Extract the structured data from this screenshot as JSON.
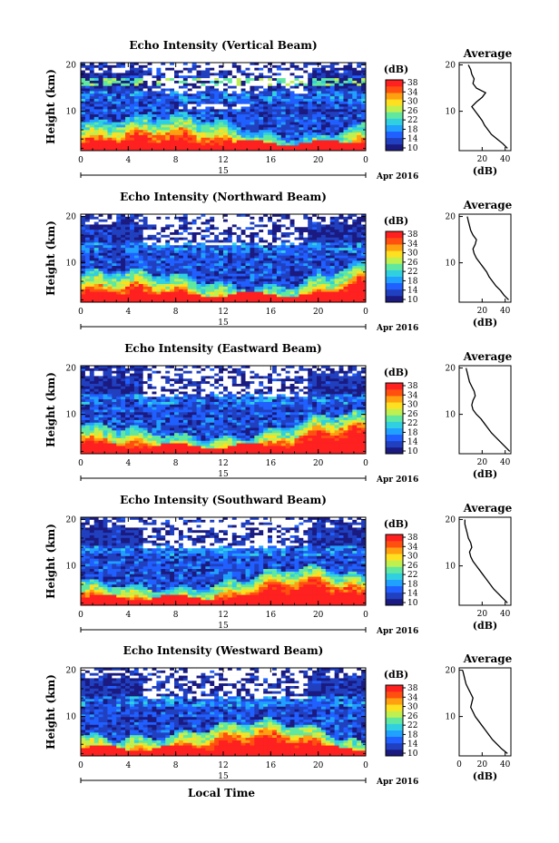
{
  "figure": {
    "xlabel": "Local Time",
    "date_label": "Apr 2016",
    "day_label": "15",
    "colorbar_label": "(dB)",
    "average_title": "Average",
    "average_xlabel": "(dB)",
    "ylabel": "Height (km)"
  },
  "colorbar": {
    "ticks": [
      "10",
      "14",
      "18",
      "22",
      "26",
      "30",
      "34",
      "38"
    ],
    "range": [
      10,
      40
    ],
    "colors": [
      "#1a1a80",
      "#2040c0",
      "#2060ff",
      "#20a0ff",
      "#30d0e0",
      "#60e8a0",
      "#c0f050",
      "#ffe020",
      "#ffa010",
      "#ff5010",
      "#ff2020"
    ]
  },
  "chart_data": [
    {
      "type": "heatmap",
      "title": "Echo Intensity (Vertical Beam)",
      "xlabel": "Local Time",
      "ylabel": "Height (km)",
      "x_ticks": [
        "0",
        "4",
        "8",
        "12",
        "16",
        "20",
        "0"
      ],
      "y_ticks": [
        "10",
        "20"
      ],
      "xlim": [
        0,
        24
      ],
      "ylim": [
        1.5,
        20.5
      ],
      "beam": "vertical",
      "average_profile": {
        "xticks": [
          "20",
          "40"
        ],
        "xlim": [
          0,
          45
        ],
        "height_km": [
          2,
          3,
          4,
          5,
          6,
          7,
          8,
          9,
          10,
          11,
          12,
          13,
          14,
          15,
          16,
          17,
          18,
          19,
          20
        ],
        "intensity_db": [
          42,
          38,
          33,
          28,
          25,
          22,
          20,
          17,
          14,
          11,
          15,
          20,
          23,
          15,
          12,
          13,
          11,
          10,
          8
        ]
      }
    },
    {
      "type": "heatmap",
      "title": "Echo Intensity (Northward Beam)",
      "xlabel": "Local Time",
      "ylabel": "Height (km)",
      "x_ticks": [
        "0",
        "4",
        "8",
        "12",
        "16",
        "20",
        "0"
      ],
      "y_ticks": [
        "10",
        "20"
      ],
      "xlim": [
        0,
        24
      ],
      "ylim": [
        1.5,
        20.5
      ],
      "beam": "northward",
      "average_profile": {
        "xticks": [
          "20",
          "40"
        ],
        "xlim": [
          0,
          45
        ],
        "height_km": [
          2,
          3,
          4,
          5,
          6,
          7,
          8,
          9,
          10,
          11,
          12,
          13,
          14,
          15,
          16,
          17,
          18,
          19,
          20
        ],
        "intensity_db": [
          43,
          39,
          36,
          32,
          29,
          26,
          24,
          21,
          18,
          15,
          13,
          12,
          14,
          15,
          12,
          10,
          9,
          8,
          7
        ]
      }
    },
    {
      "type": "heatmap",
      "title": "Echo Intensity (Eastward Beam)",
      "xlabel": "Local Time",
      "ylabel": "Height (km)",
      "x_ticks": [
        "0",
        "4",
        "8",
        "12",
        "16",
        "20",
        "0"
      ],
      "y_ticks": [
        "10",
        "20"
      ],
      "xlim": [
        0,
        24
      ],
      "ylim": [
        1.5,
        20.5
      ],
      "beam": "eastward",
      "average_profile": {
        "xticks": [
          "20",
          "40"
        ],
        "xlim": [
          0,
          45
        ],
        "height_km": [
          2,
          3,
          4,
          5,
          6,
          7,
          8,
          9,
          10,
          11,
          12,
          13,
          14,
          15,
          16,
          17,
          18,
          19,
          20
        ],
        "intensity_db": [
          44,
          40,
          36,
          32,
          28,
          25,
          22,
          19,
          15,
          12,
          11,
          12,
          14,
          13,
          11,
          9,
          8,
          7,
          6
        ]
      }
    },
    {
      "type": "heatmap",
      "title": "Echo Intensity (Southward Beam)",
      "xlabel": "Local Time",
      "ylabel": "Height (km)",
      "x_ticks": [
        "0",
        "4",
        "8",
        "12",
        "16",
        "20",
        "0"
      ],
      "y_ticks": [
        "10",
        "20"
      ],
      "xlim": [
        0,
        24
      ],
      "ylim": [
        1.5,
        20.5
      ],
      "beam": "southward",
      "average_profile": {
        "xticks": [
          "20",
          "40"
        ],
        "xlim": [
          0,
          45
        ],
        "height_km": [
          2,
          3,
          4,
          5,
          6,
          7,
          8,
          9,
          10,
          11,
          12,
          13,
          14,
          15,
          16,
          17,
          18,
          19,
          20
        ],
        "intensity_db": [
          42,
          38,
          34,
          30,
          27,
          24,
          21,
          18,
          15,
          12,
          10,
          9,
          11,
          10,
          8,
          7,
          6,
          5,
          5
        ]
      }
    },
    {
      "type": "heatmap",
      "title": "Echo Intensity (Westward Beam)",
      "xlabel": "Local Time",
      "ylabel": "Height (km)",
      "x_ticks": [
        "0",
        "4",
        "8",
        "12",
        "16",
        "20",
        "0"
      ],
      "y_ticks": [
        "10",
        "20"
      ],
      "xlim": [
        0,
        24
      ],
      "ylim": [
        1.5,
        20.5
      ],
      "beam": "westward",
      "average_profile": {
        "xticks": [
          "0",
          "20",
          "40"
        ],
        "xlim": [
          0,
          45
        ],
        "height_km": [
          2,
          3,
          4,
          5,
          6,
          7,
          8,
          9,
          10,
          11,
          12,
          13,
          14,
          15,
          16,
          17,
          18,
          19,
          20
        ],
        "intensity_db": [
          42,
          37,
          33,
          29,
          26,
          23,
          20,
          17,
          14,
          12,
          10,
          11,
          12,
          10,
          8,
          6,
          5,
          4,
          3
        ]
      }
    }
  ]
}
